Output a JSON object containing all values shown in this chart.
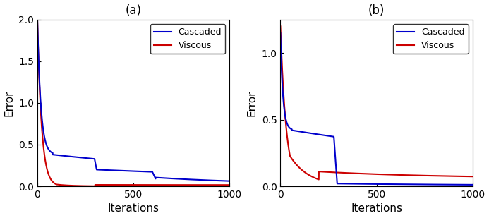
{
  "title_a": "(a)",
  "title_b": "(b)",
  "xlabel": "Iterations",
  "ylabel": "Error",
  "xlim": [
    0,
    1000
  ],
  "ylim_a": [
    0,
    2
  ],
  "ylim_b": [
    0,
    1.25
  ],
  "yticks_a": [
    0,
    0.5,
    1.0,
    1.5,
    2.0
  ],
  "yticks_b": [
    0,
    0.5,
    1.0
  ],
  "xticks": [
    0,
    500,
    1000
  ],
  "cascaded_color": "#0000cc",
  "viscous_color": "#cc0000",
  "legend_labels": [
    "Cascaded",
    "Viscous"
  ],
  "linewidth": 1.5,
  "background_color": "#ffffff",
  "figsize": [
    6.93,
    3.09
  ],
  "dpi": 100
}
